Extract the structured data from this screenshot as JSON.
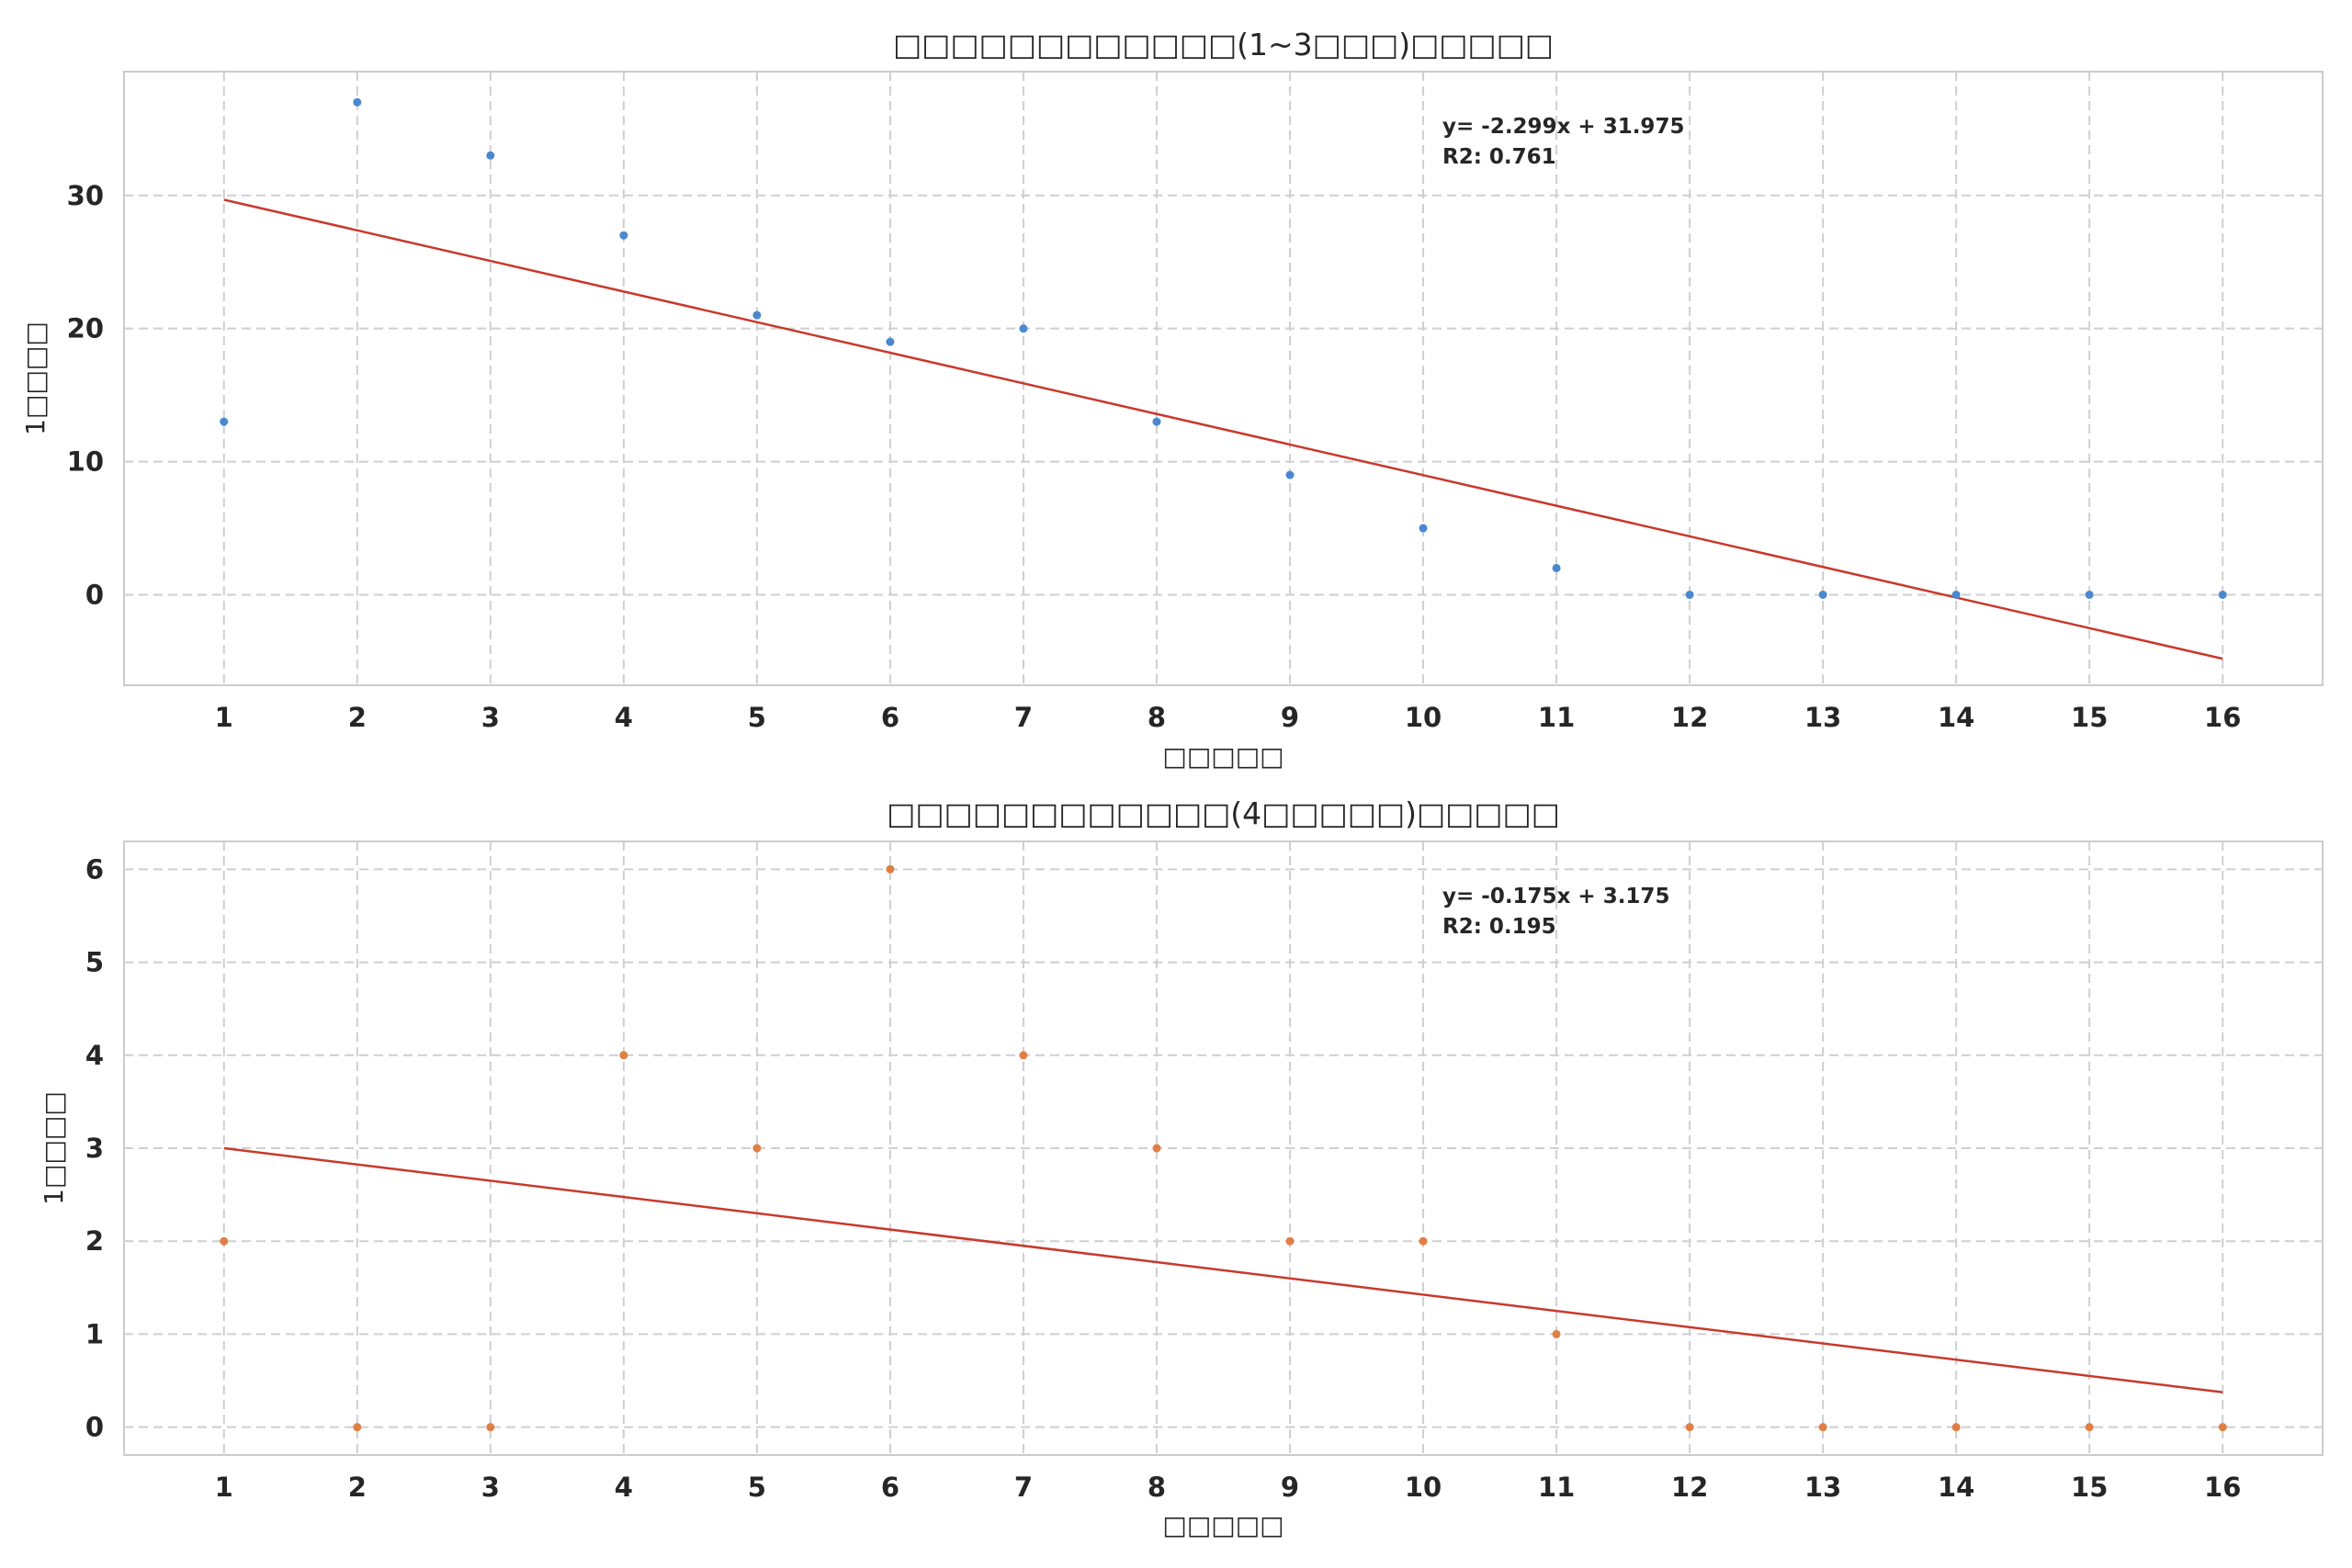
{
  "chart_data": [
    {
      "type": "scatter",
      "title": "□□□□□□□□□□□□(1~3□□□)□□□□□",
      "xlabel": "□□□□□",
      "ylabel": "1□□□□",
      "x": [
        1,
        2,
        3,
        4,
        5,
        6,
        7,
        8,
        9,
        10,
        11,
        12,
        13,
        14,
        15,
        16
      ],
      "series": [
        {
          "values": [
            13,
            37,
            33,
            27,
            21,
            19,
            20,
            13,
            9,
            5,
            2,
            0,
            0,
            0,
            0,
            0
          ],
          "color": "#4a88cf"
        }
      ],
      "trendline": {
        "slope": -2.299,
        "intercept": 31.975,
        "color": "#c8392c"
      },
      "annotation": [
        "y= -2.299x + 31.975",
        "R2: 0.761"
      ],
      "xticks": [
        1,
        2,
        3,
        4,
        5,
        6,
        7,
        8,
        9,
        10,
        11,
        12,
        13,
        14,
        15,
        16
      ],
      "yticks": [
        0,
        10,
        20,
        30
      ],
      "xlim": [
        0.25,
        16.75
      ],
      "ylim": [
        -6.8,
        39.3
      ],
      "grid": true
    },
    {
      "type": "scatter",
      "title": "□□□□□□□□□□□□(4□□□□□)□□□□□",
      "xlabel": "□□□□□",
      "ylabel": "1□□□□",
      "x": [
        1,
        2,
        3,
        4,
        5,
        6,
        7,
        8,
        9,
        10,
        11,
        12,
        13,
        14,
        15,
        16
      ],
      "series": [
        {
          "values": [
            2,
            0,
            0,
            4,
            3,
            6,
            4,
            3,
            2,
            2,
            1,
            0,
            0,
            0,
            0,
            0
          ],
          "color": "#e07f45"
        }
      ],
      "trendline": {
        "slope": -0.175,
        "intercept": 3.175,
        "color": "#c8392c"
      },
      "annotation": [
        "y= -0.175x + 3.175",
        "R2: 0.195"
      ],
      "xticks": [
        1,
        2,
        3,
        4,
        5,
        6,
        7,
        8,
        9,
        10,
        11,
        12,
        13,
        14,
        15,
        16
      ],
      "yticks": [
        0,
        1,
        2,
        3,
        4,
        5,
        6
      ],
      "xlim": [
        0.25,
        16.75
      ],
      "ylim": [
        -0.3,
        6.3
      ],
      "grid": true
    }
  ]
}
